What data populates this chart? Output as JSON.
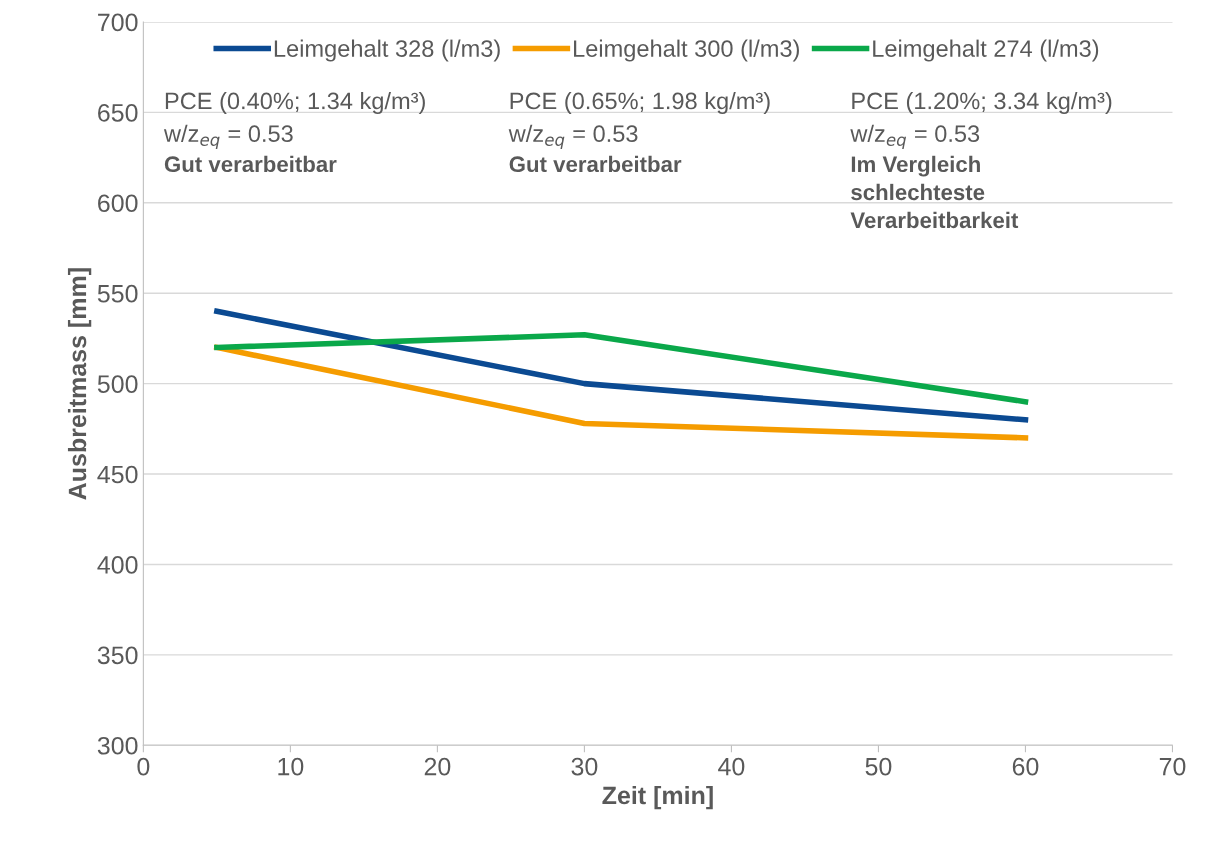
{
  "chart_data": {
    "type": "line",
    "xlabel": "Zeit [min]",
    "ylabel": "Ausbreitmass [mm]",
    "x": [
      5,
      30,
      60
    ],
    "series": [
      {
        "name": "Leimgehalt 328 (l/m3)",
        "color": "#0b4a92",
        "values": [
          540,
          500,
          480
        ]
      },
      {
        "name": "Leimgehalt 300 (l/m3)",
        "color": "#f59c00",
        "values": [
          520,
          478,
          470
        ]
      },
      {
        "name": "Leimgehalt 274 (l/m3)",
        "color": "#0aa84a",
        "values": [
          520,
          527,
          490
        ]
      }
    ],
    "annotations": [
      "PCE (0.40%; 1.34 kg/m³)",
      "w/z$_{eq}$ = 0.53",
      "Gut verarbeitbar",
      "PCE (0.65%; 1.98 kg/m³)",
      "w/z$_{eq}$ = 0.53",
      "Gut verarbeitbar",
      "PCE (1.20%; 3.34 kg/m³)",
      "w/z$_{eq}$ = 0.53",
      "Im Vergleich schlechteste Verarbeitbarkeit"
    ],
    "xlim": [
      0,
      70
    ],
    "xticks": [
      0,
      10,
      20,
      30,
      40,
      50,
      60,
      70
    ],
    "ylim": [
      300,
      700
    ],
    "yticks": [
      300,
      350,
      400,
      450,
      500,
      550,
      600,
      650,
      700
    ],
    "grid": "y",
    "legend": "top",
    "marker": "none",
    "line_style": "solid"
  }
}
